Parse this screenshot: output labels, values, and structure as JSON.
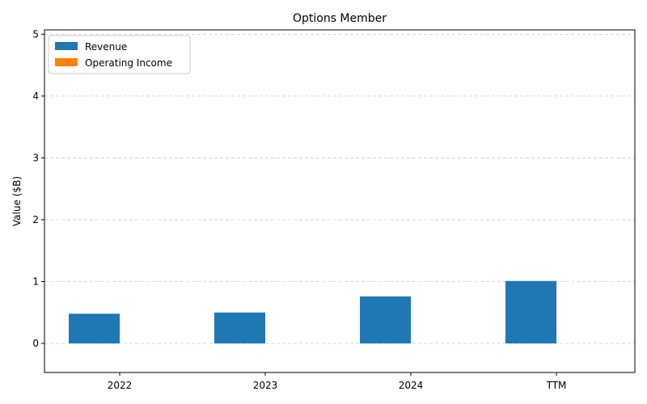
{
  "chart_data": {
    "type": "bar",
    "title": "Options Member",
    "xlabel": "",
    "ylabel": "Value ($B)",
    "categories": [
      "2022",
      "2023",
      "2024",
      "TTM"
    ],
    "series": [
      {
        "name": "Revenue",
        "color": "#1f77b4",
        "values": [
          0.48,
          0.5,
          0.76,
          1.01
        ]
      },
      {
        "name": "Operating Income",
        "color": "#ff7f0e",
        "values": [
          0,
          0,
          0,
          0
        ]
      }
    ],
    "ylim": [
      -0.47,
      5.07
    ],
    "yticks": [
      0,
      1,
      2,
      3,
      4,
      5
    ],
    "grid": true,
    "legend_position": "top-left"
  }
}
